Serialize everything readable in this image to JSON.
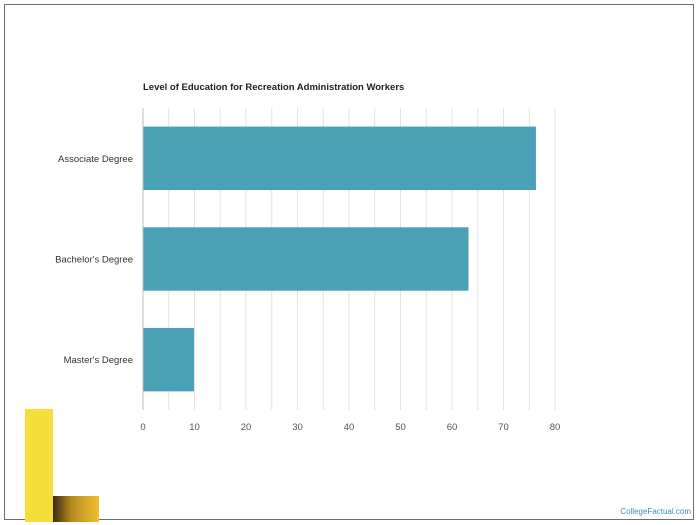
{
  "chart_data": {
    "type": "bar",
    "orientation": "horizontal",
    "title": "Level of Education for Recreation Administration Workers",
    "categories": [
      "Associate Degree",
      "Bachelor's Degree",
      "Master's Degree"
    ],
    "values": [
      76.3,
      63.2,
      9.9
    ],
    "xlim": [
      0,
      80
    ],
    "xticks": [
      0,
      10,
      20,
      30,
      40,
      50,
      60,
      70,
      80
    ],
    "xlabel": "",
    "ylabel": "",
    "grid": "vertical",
    "legend": "none",
    "bar_color": "#4aa0b4"
  },
  "watermark": "CollegeFactual.com",
  "colors": {
    "logo_yellow": "#f6df3a",
    "logo_gold": "#f2c12e",
    "frame": "#6f6f6f"
  }
}
